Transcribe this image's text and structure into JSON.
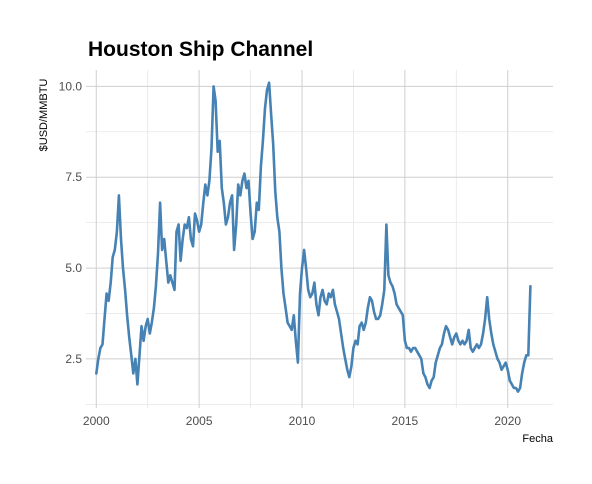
{
  "chart_data": {
    "type": "line",
    "title": "Houston Ship Channel",
    "xlabel": "Fecha",
    "ylabel": "$USD/MMBTU",
    "xlim": [
      1999.5,
      2022.2
    ],
    "ylim": [
      1.15,
      10.45
    ],
    "x_ticks": [
      2000,
      2005,
      2010,
      2015,
      2020
    ],
    "y_ticks": [
      2.5,
      5.0,
      7.5,
      10.0
    ],
    "x_tick_labels": [
      "2000",
      "2005",
      "2010",
      "2015",
      "2020"
    ],
    "y_tick_labels": [
      "2.5",
      "5.0",
      "7.5",
      "10.0"
    ],
    "grid": true,
    "series": [
      {
        "color": "#4682b4",
        "x": [
          2000.0,
          2000.1,
          2000.2,
          2000.3,
          2000.4,
          2000.5,
          2000.6,
          2000.7,
          2000.8,
          2000.9,
          2001.0,
          2001.1,
          2001.2,
          2001.3,
          2001.4,
          2001.5,
          2001.6,
          2001.7,
          2001.8,
          2001.9,
          2002.0,
          2002.1,
          2002.2,
          2002.3,
          2002.4,
          2002.5,
          2002.6,
          2002.7,
          2002.8,
          2002.9,
          2003.0,
          2003.1,
          2003.2,
          2003.3,
          2003.4,
          2003.5,
          2003.6,
          2003.7,
          2003.8,
          2003.9,
          2004.0,
          2004.1,
          2004.2,
          2004.3,
          2004.4,
          2004.5,
          2004.6,
          2004.7,
          2004.8,
          2004.9,
          2005.0,
          2005.1,
          2005.2,
          2005.3,
          2005.4,
          2005.5,
          2005.6,
          2005.7,
          2005.8,
          2005.9,
          2006.0,
          2006.1,
          2006.2,
          2006.3,
          2006.4,
          2006.5,
          2006.6,
          2006.7,
          2006.8,
          2006.9,
          2007.0,
          2007.1,
          2007.2,
          2007.3,
          2007.4,
          2007.5,
          2007.6,
          2007.7,
          2007.8,
          2007.9,
          2008.0,
          2008.1,
          2008.2,
          2008.3,
          2008.4,
          2008.5,
          2008.6,
          2008.7,
          2008.8,
          2008.9,
          2009.0,
          2009.1,
          2009.2,
          2009.3,
          2009.4,
          2009.5,
          2009.6,
          2009.7,
          2009.8,
          2009.9,
          2010.0,
          2010.1,
          2010.2,
          2010.3,
          2010.4,
          2010.5,
          2010.6,
          2010.7,
          2010.8,
          2010.9,
          2011.0,
          2011.1,
          2011.2,
          2011.3,
          2011.4,
          2011.5,
          2011.6,
          2011.7,
          2011.8,
          2011.9,
          2012.0,
          2012.1,
          2012.2,
          2012.3,
          2012.4,
          2012.5,
          2012.6,
          2012.7,
          2012.8,
          2012.9,
          2013.0,
          2013.1,
          2013.2,
          2013.3,
          2013.4,
          2013.5,
          2013.6,
          2013.7,
          2013.8,
          2013.9,
          2014.0,
          2014.1,
          2014.2,
          2014.3,
          2014.4,
          2014.5,
          2014.6,
          2014.7,
          2014.8,
          2014.9,
          2015.0,
          2015.1,
          2015.2,
          2015.3,
          2015.4,
          2015.5,
          2015.6,
          2015.7,
          2015.8,
          2015.9,
          2016.0,
          2016.1,
          2016.2,
          2016.3,
          2016.4,
          2016.5,
          2016.6,
          2016.7,
          2016.8,
          2016.9,
          2017.0,
          2017.1,
          2017.2,
          2017.3,
          2017.4,
          2017.5,
          2017.6,
          2017.7,
          2017.8,
          2017.9,
          2018.0,
          2018.1,
          2018.2,
          2018.3,
          2018.4,
          2018.5,
          2018.6,
          2018.7,
          2018.8,
          2018.9,
          2019.0,
          2019.1,
          2019.2,
          2019.3,
          2019.4,
          2019.5,
          2019.6,
          2019.7,
          2019.8,
          2019.9,
          2020.0,
          2020.1,
          2020.2,
          2020.3,
          2020.4,
          2020.5,
          2020.6,
          2020.7,
          2020.8,
          2020.9,
          2021.0,
          2021.1
        ],
        "y": [
          2.1,
          2.5,
          2.8,
          2.9,
          3.6,
          4.3,
          4.1,
          4.6,
          5.3,
          5.5,
          6.0,
          7.0,
          5.8,
          5.0,
          4.4,
          3.7,
          3.1,
          2.6,
          2.1,
          2.5,
          1.8,
          2.6,
          3.4,
          3.0,
          3.4,
          3.6,
          3.2,
          3.5,
          3.9,
          4.5,
          5.4,
          6.8,
          5.5,
          5.8,
          5.2,
          4.6,
          4.8,
          4.6,
          4.4,
          6.0,
          6.2,
          5.2,
          5.8,
          6.2,
          6.1,
          6.4,
          5.8,
          5.6,
          6.5,
          6.3,
          6.0,
          6.2,
          6.8,
          7.3,
          7.0,
          7.4,
          8.3,
          10.0,
          9.6,
          8.2,
          8.5,
          7.2,
          6.8,
          6.2,
          6.4,
          6.8,
          7.0,
          5.5,
          6.2,
          7.3,
          7.0,
          7.4,
          7.6,
          7.2,
          7.4,
          6.5,
          5.8,
          6.0,
          6.8,
          6.6,
          7.8,
          8.5,
          9.4,
          9.9,
          10.1,
          9.2,
          8.4,
          7.1,
          6.4,
          6.0,
          5.0,
          4.3,
          3.9,
          3.5,
          3.4,
          3.3,
          3.7,
          3.0,
          2.4,
          4.3,
          5.0,
          5.5,
          5.0,
          4.4,
          4.2,
          4.3,
          4.6,
          4.0,
          3.7,
          4.2,
          4.4,
          4.1,
          4.0,
          4.3,
          4.2,
          4.4,
          4.0,
          3.8,
          3.6,
          3.2,
          2.8,
          2.5,
          2.2,
          2.0,
          2.3,
          2.8,
          3.0,
          2.9,
          3.4,
          3.5,
          3.3,
          3.5,
          3.9,
          4.2,
          4.1,
          3.8,
          3.6,
          3.6,
          3.7,
          4.0,
          4.4,
          6.2,
          4.8,
          4.6,
          4.5,
          4.3,
          4.0,
          3.9,
          3.8,
          3.7,
          3.0,
          2.8,
          2.8,
          2.7,
          2.8,
          2.8,
          2.7,
          2.6,
          2.5,
          2.1,
          2.0,
          1.8,
          1.7,
          1.9,
          2.0,
          2.4,
          2.6,
          2.8,
          2.9,
          3.2,
          3.4,
          3.3,
          3.1,
          2.9,
          3.1,
          3.2,
          3.0,
          2.9,
          3.0,
          2.9,
          3.0,
          3.3,
          2.8,
          2.7,
          2.8,
          2.9,
          2.8,
          2.9,
          3.2,
          3.6,
          4.2,
          3.6,
          3.2,
          2.9,
          2.7,
          2.5,
          2.4,
          2.2,
          2.3,
          2.4,
          2.2,
          1.9,
          1.8,
          1.7,
          1.7,
          1.6,
          1.7,
          2.1,
          2.4,
          2.6,
          2.6,
          4.5
        ]
      }
    ]
  }
}
